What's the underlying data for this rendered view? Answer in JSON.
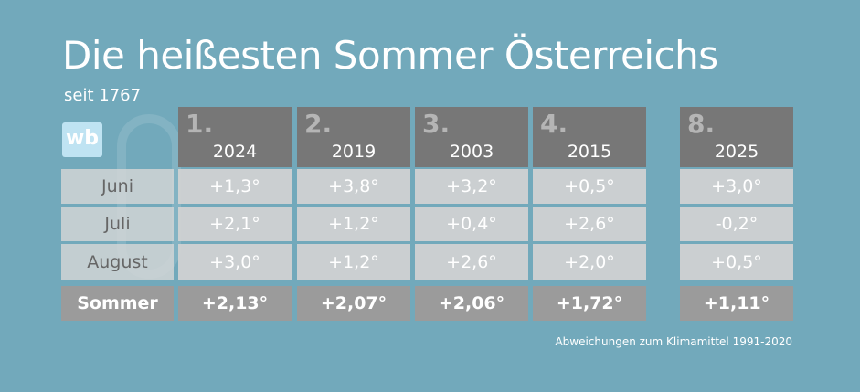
{
  "header": {
    "title": "Die heißesten Sommer Österreichs",
    "subtitle": "seit 1767",
    "logo": "wb"
  },
  "table": {
    "columns": [
      {
        "rank": "1.",
        "year": "2024"
      },
      {
        "rank": "2.",
        "year": "2019"
      },
      {
        "rank": "3.",
        "year": "2003"
      },
      {
        "rank": "4.",
        "year": "2015"
      },
      {
        "rank": "8.",
        "year": "2025"
      }
    ],
    "rows": [
      {
        "label": "Juni",
        "values": [
          "+1,3°",
          "+3,8°",
          "+3,2°",
          "+0,5°",
          "+3,0°"
        ]
      },
      {
        "label": "Juli",
        "values": [
          "+2,1°",
          "+1,2°",
          "+0,4°",
          "+2,6°",
          "-0,2°"
        ]
      },
      {
        "label": "August",
        "values": [
          "+3,0°",
          "+1,2°",
          "+2,6°",
          "+2,0°",
          "+0,5°"
        ]
      },
      {
        "label": "Sommer",
        "values": [
          "+2,13°",
          "+2,07°",
          "+2,06°",
          "+1,72°",
          "+1,11°"
        ]
      }
    ]
  },
  "footnote": "Abweichungen zum Klimamittel 1991-2020"
}
